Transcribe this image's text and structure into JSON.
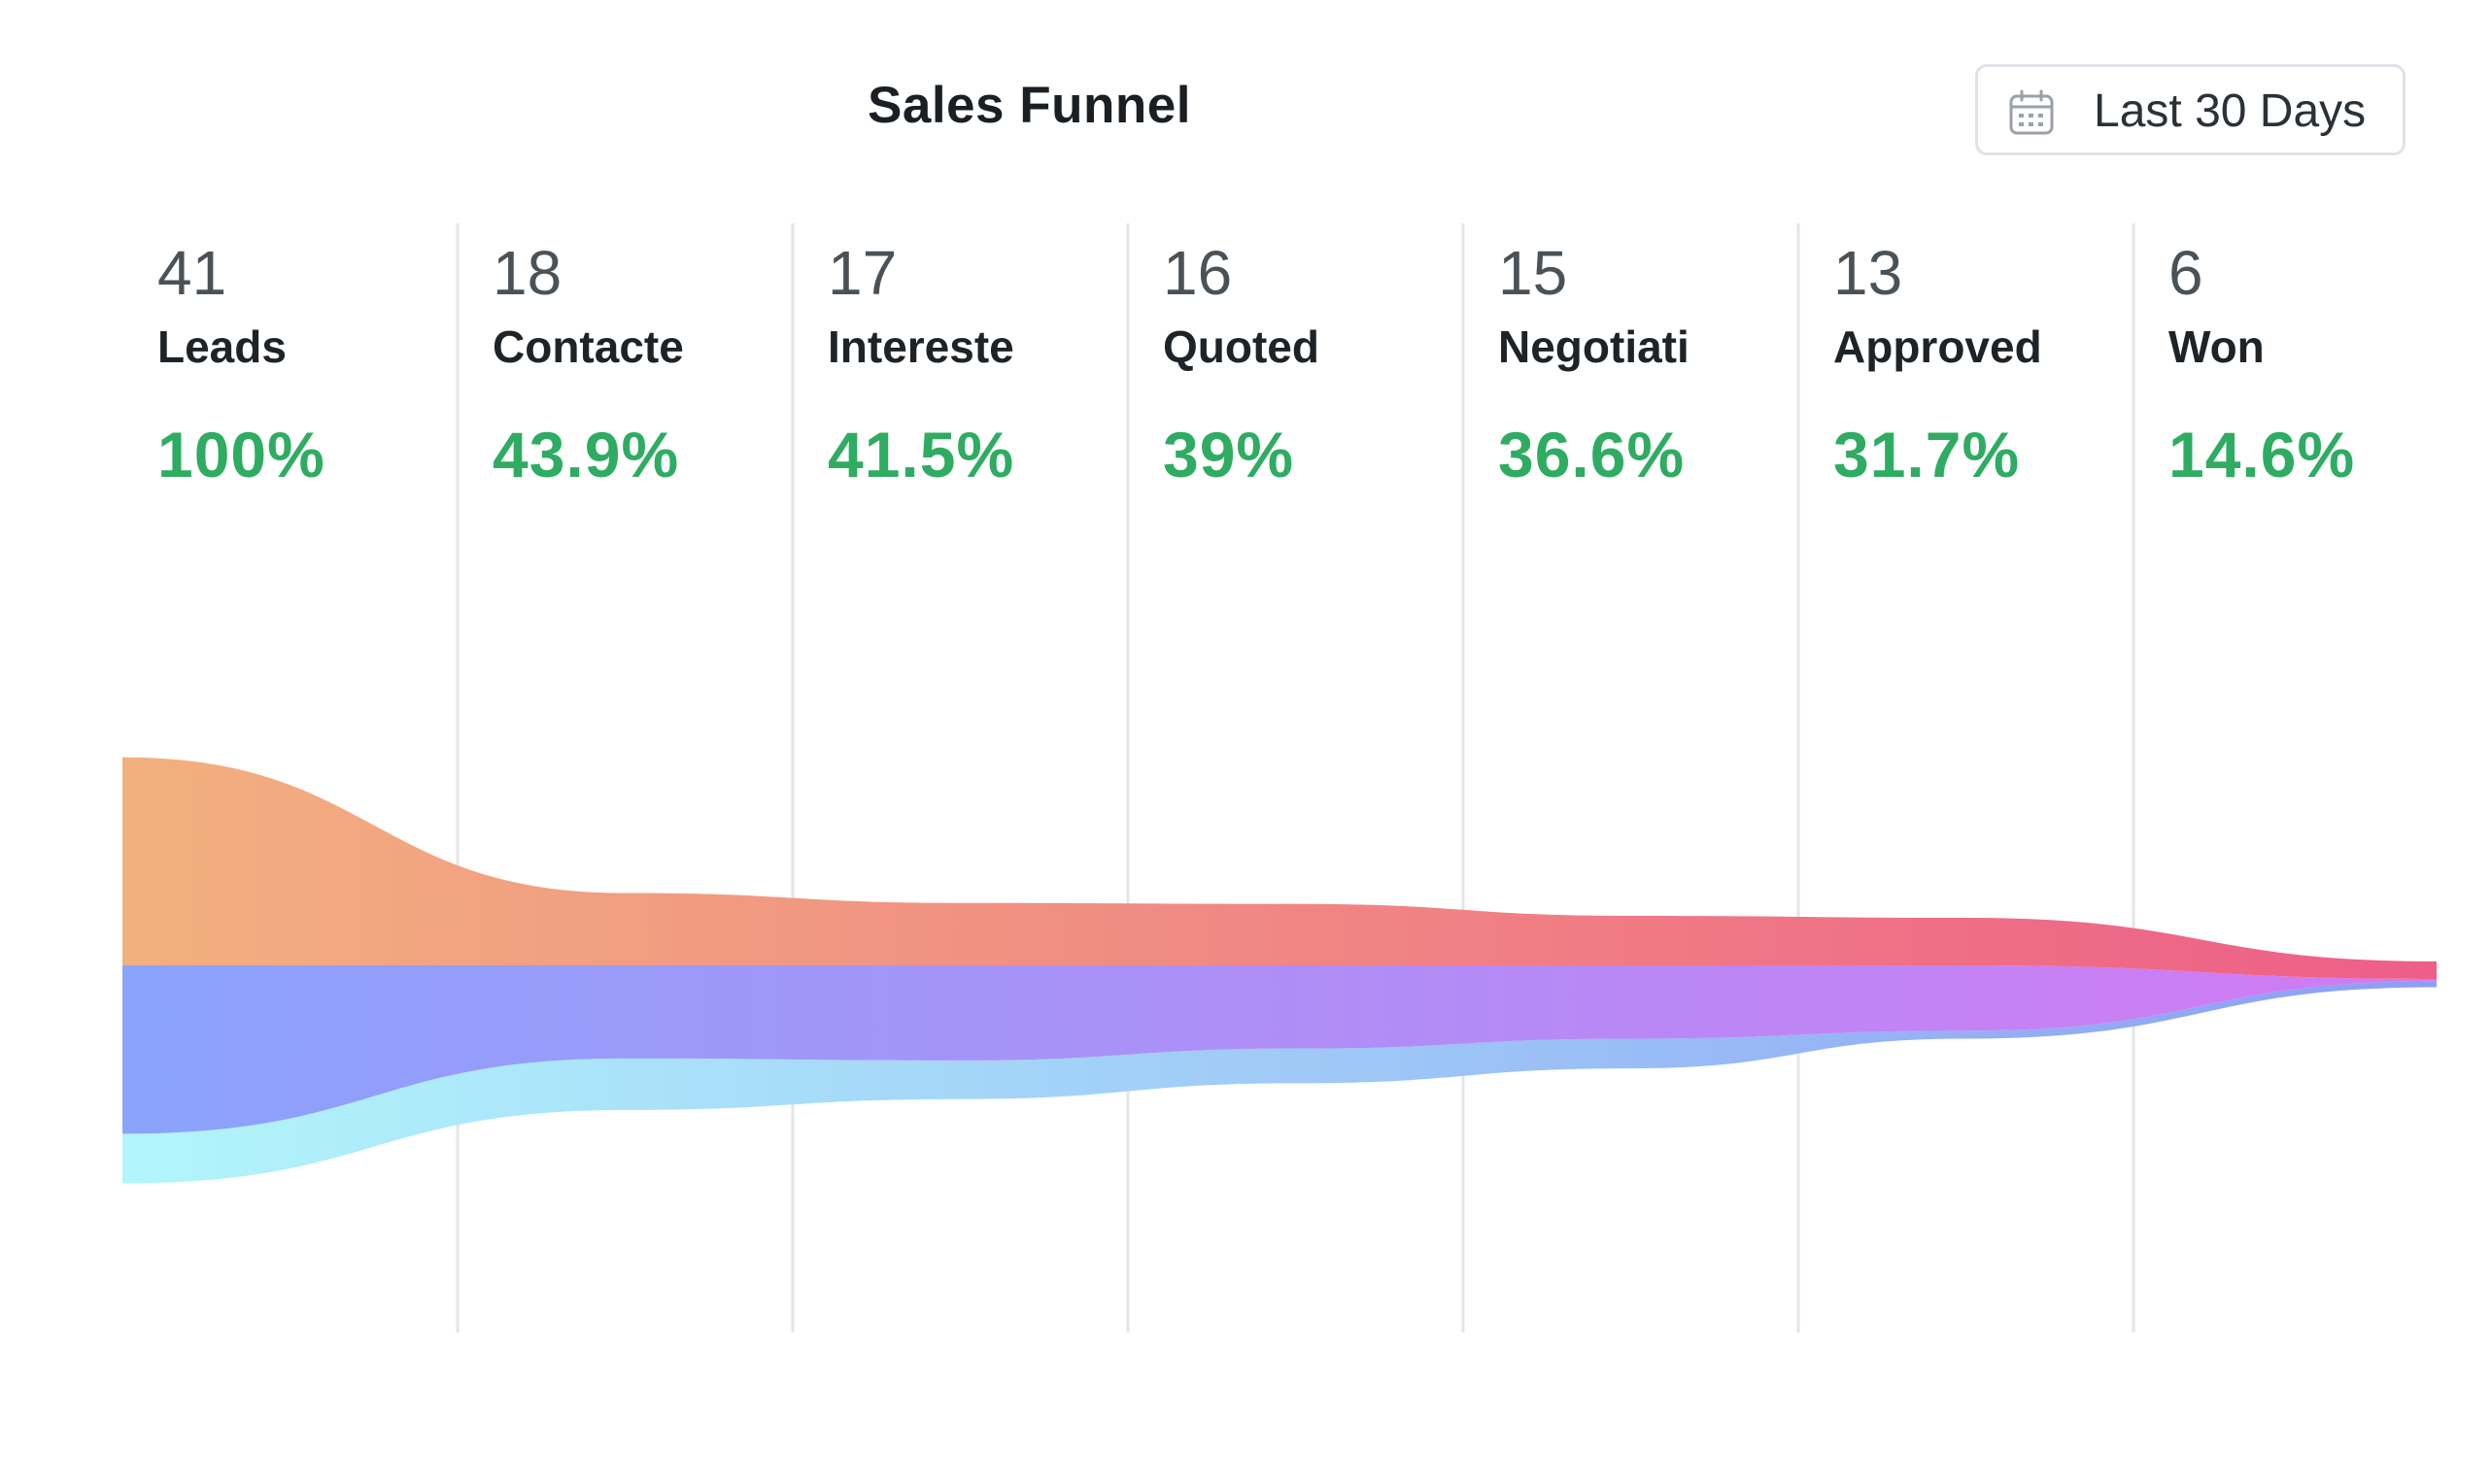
{
  "header": {
    "title": "Sales Funnel",
    "date_range": "Last 30 Days",
    "date_icon": "calendar-icon"
  },
  "chart_data": {
    "type": "area",
    "title": "Sales Funnel",
    "categories": [
      "Leads",
      "Contacte",
      "Intereste",
      "Quoted",
      "Negotiati",
      "Approved",
      "Won"
    ],
    "counts": [
      41,
      18,
      17,
      16,
      15,
      13,
      6
    ],
    "conversion_pct": [
      "100%",
      "43.9%",
      "41.5%",
      "39%",
      "36.6%",
      "31.7%",
      "14.6%"
    ],
    "series": [
      {
        "name": "upper-band",
        "values": [
          21.0,
          7.3,
          6.3,
          6.2,
          5.0,
          4.8,
          0.4
        ]
      },
      {
        "name": "middle-band",
        "values": [
          17.0,
          9.4,
          9.6,
          8.4,
          7.4,
          6.6,
          1.6
        ]
      },
      {
        "name": "lower-band",
        "values": [
          5.0,
          5.2,
          3.9,
          3.5,
          3.0,
          0.8,
          0.6
        ]
      }
    ],
    "colors": {
      "upper_start": "#f2b07f",
      "upper_end": "#ee5e88",
      "middle_start": "#8aa3fb",
      "middle_end": "#d27af2",
      "lower_start": "#b2f6fb",
      "lower_end": "#8d9ef3",
      "gridline": "#e3e6ea",
      "pct_text": "#2eac62"
    }
  }
}
